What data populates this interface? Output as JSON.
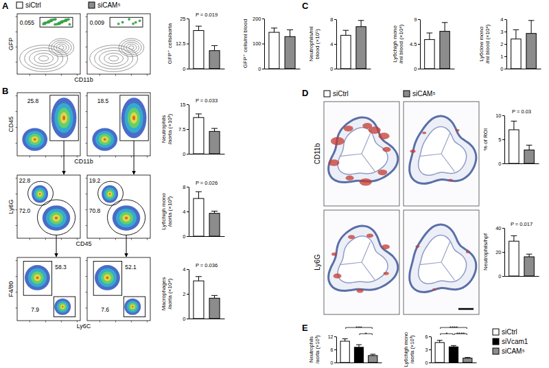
{
  "chart_data": [
    {
      "type": "legend",
      "series": [
        {
          "name": "siCtrl",
          "color": "#ffffff"
        },
        {
          "name": "siCAM⁵",
          "color": "#8c8c8c"
        }
      ]
    },
    {
      "type": "flow",
      "panel": "A",
      "ylabel": "GFP",
      "xlabel": "CD11b",
      "plots": [
        {
          "gates": [
            0.055
          ]
        },
        {
          "gates": [
            0.009
          ]
        }
      ]
    },
    {
      "type": "bar",
      "ylabel": [
        "GFP⁺ cells/aorta"
      ],
      "values": [
        19,
        9
      ],
      "errors": [
        2.2,
        2.5
      ],
      "colors": [
        "#ffffff",
        "#8c8c8c"
      ],
      "ylim": [
        0,
        25
      ],
      "yticks": [
        0,
        12.5,
        25
      ],
      "annotations": [
        "P = 0.019"
      ]
    },
    {
      "type": "bar",
      "ylabel": [
        "GFP⁺ cells/ml blood"
      ],
      "values": [
        145,
        128
      ],
      "errors": [
        17,
        27
      ],
      "colors": [
        "#ffffff",
        "#8c8c8c"
      ],
      "ylim": [
        0,
        200
      ],
      "yticks": [
        0,
        100,
        200
      ]
    },
    {
      "type": "bar",
      "panel": "C",
      "ylabel": [
        "Neutrophils/ml",
        "blood (×10⁵)"
      ],
      "values": [
        5.4,
        6.8
      ],
      "errors": [
        0.8,
        1.0
      ],
      "colors": [
        "#ffffff",
        "#8c8c8c"
      ],
      "ylim": [
        0,
        8
      ],
      "yticks": [
        0,
        4,
        8
      ]
    },
    {
      "type": "bar",
      "ylabel": [
        "Ly6chigh mono",
        "/ml blood (×10⁴)"
      ],
      "values": [
        5.3,
        6.8
      ],
      "errors": [
        1.2,
        1.6
      ],
      "colors": [
        "#ffffff",
        "#8c8c8c"
      ],
      "ylim": [
        0,
        9
      ],
      "yticks": [
        0,
        4.5,
        9
      ]
    },
    {
      "type": "bar",
      "ylabel": [
        "Ly6clow mono",
        "/ml blood (×10⁴)"
      ],
      "values": [
        2.4,
        2.85
      ],
      "errors": [
        0.75,
        1.05
      ],
      "colors": [
        "#ffffff",
        "#8c8c8c"
      ],
      "ylim": [
        0,
        4
      ],
      "yticks": [
        0,
        1,
        2,
        3,
        4
      ]
    },
    {
      "type": "flow",
      "panel": "B",
      "ylabel": "CD45",
      "xlabel": "CD11b",
      "plots": [
        {
          "gates": [
            25.8
          ]
        },
        {
          "gates": [
            18.5
          ]
        }
      ]
    },
    {
      "type": "flow",
      "ylabel": "Ly6G",
      "xlabel": "CD45",
      "plots": [
        {
          "gates": [
            22.8,
            {
              "value": 72.0,
              "label": "72.0"
            }
          ]
        },
        {
          "gates": [
            19.2,
            70.8
          ]
        }
      ]
    },
    {
      "type": "flow",
      "ylabel": "F4/80",
      "xlabel": "Ly6C",
      "plots": [
        {
          "gates": [
            58.3,
            7.9
          ]
        },
        {
          "gates": [
            52.1,
            7.6
          ]
        }
      ]
    },
    {
      "type": "bar",
      "ylabel": [
        "Neutrophils",
        "/aorta (×10³)"
      ],
      "values": [
        11,
        6.8
      ],
      "errors": [
        1.1,
        0.9
      ],
      "colors": [
        "#ffffff",
        "#8c8c8c"
      ],
      "ylim": [
        0,
        15
      ],
      "yticks": [
        0,
        7.5,
        15
      ],
      "annotations": [
        "P = 0.033"
      ]
    },
    {
      "type": "bar",
      "ylabel": [
        "Ly6chigh mono",
        "/aorta (×10³)"
      ],
      "values": [
        6.1,
        3.7
      ],
      "errors": [
        1.1,
        0.35
      ],
      "colors": [
        "#ffffff",
        "#8c8c8c"
      ],
      "ylim": [
        0,
        8
      ],
      "yticks": [
        0,
        4,
        8
      ],
      "annotations": [
        "P = 0.026"
      ]
    },
    {
      "type": "bar",
      "ylabel": [
        "Macrophages",
        "/aorta (×10⁴)"
      ],
      "values": [
        3.05,
        1.65
      ],
      "errors": [
        0.35,
        0.22
      ],
      "colors": [
        "#ffffff",
        "#8c8c8c"
      ],
      "ylim": [
        0,
        4
      ],
      "yticks": [
        0,
        2,
        4
      ],
      "annotations": [
        "P = 0.036"
      ]
    },
    {
      "type": "legend",
      "series": [
        {
          "name": "siCtrl",
          "color": "#ffffff"
        },
        {
          "name": "siCAM⁵",
          "color": "#8c8c8c"
        }
      ]
    },
    {
      "type": "micrograph",
      "panel": "D",
      "rows": [
        "CD11b",
        "Ly6G"
      ]
    },
    {
      "type": "bar",
      "ylabel": [
        "% of ROI"
      ],
      "values": [
        7,
        2.8
      ],
      "errors": [
        1.8,
        1.0
      ],
      "colors": [
        "#ffffff",
        "#8c8c8c"
      ],
      "ylim": [
        0,
        10
      ],
      "yticks": [
        0,
        5,
        10
      ],
      "annotations": [
        "P = 0.03"
      ]
    },
    {
      "type": "bar",
      "ylabel": [
        "Neutrophils/hpf"
      ],
      "values": [
        29,
        16
      ],
      "errors": [
        4.5,
        2.2
      ],
      "colors": [
        "#ffffff",
        "#8c8c8c"
      ],
      "ylim": [
        0,
        40
      ],
      "yticks": [
        0,
        20,
        40
      ],
      "annotations": [
        "P = 0.017"
      ]
    },
    {
      "type": "bar",
      "panel": "E",
      "ylabel": [
        "Neutrophils",
        "/aorta (×10³)"
      ],
      "values": [
        9.8,
        7,
        3.2
      ],
      "errors": [
        1.1,
        1.2,
        0.6
      ],
      "colors": [
        "#ffffff",
        "#000000",
        "#8c8c8c"
      ],
      "ylim": [
        0,
        12
      ],
      "yticks": [
        0,
        6,
        12
      ],
      "comparisons": [
        {
          "from": 0,
          "to": 2,
          "label": "***"
        },
        {
          "from": 1,
          "to": 2,
          "label": "*"
        }
      ]
    },
    {
      "type": "bar",
      "ylabel": [
        "Ly6chigh mono",
        "/aorta (×10³)"
      ],
      "values": [
        4.6,
        3.6,
        1.0
      ],
      "errors": [
        0.5,
        0.3,
        0.15
      ],
      "colors": [
        "#ffffff",
        "#000000",
        "#8c8c8c"
      ],
      "ylim": [
        0,
        6
      ],
      "yticks": [
        0,
        3,
        6
      ],
      "comparisons": [
        {
          "from": 0,
          "to": 2,
          "label": "****"
        },
        {
          "from": 0,
          "to": 1,
          "label": "*"
        },
        {
          "from": 1,
          "to": 2,
          "label": "****"
        }
      ]
    },
    {
      "type": "legend",
      "series": [
        {
          "name": "siCtrl",
          "color": "#ffffff"
        },
        {
          "name": "siVcam1",
          "color": "#000000"
        },
        {
          "name": "siCAM⁵",
          "color": "#8c8c8c"
        }
      ]
    }
  ]
}
